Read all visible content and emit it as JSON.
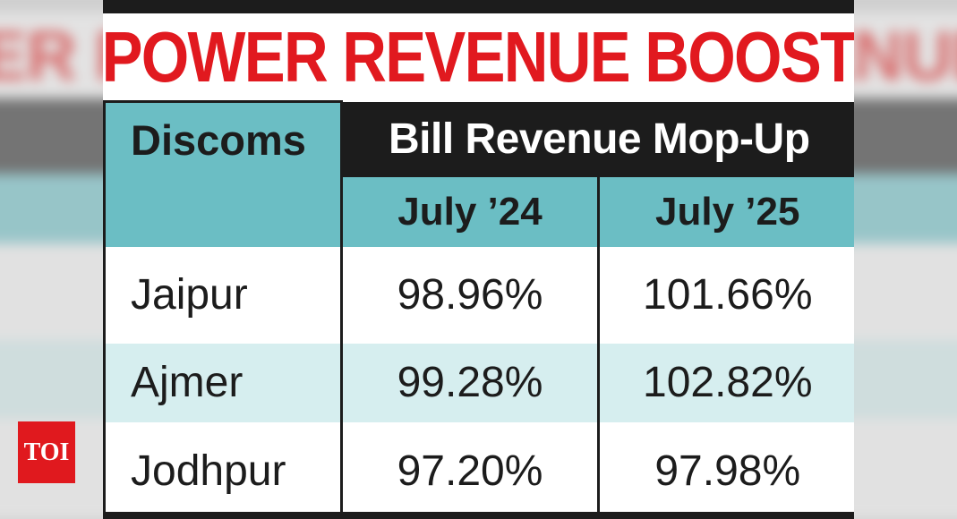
{
  "title": "POWER REVENUE BOOST",
  "table": {
    "row_header": "Discoms",
    "group_header": "Bill Revenue Mop-Up",
    "columns": [
      "July ’24",
      "July ’25"
    ],
    "rows": [
      {
        "name": "Jaipur",
        "values": [
          "98.96%",
          "101.66%"
        ]
      },
      {
        "name": "Ajmer",
        "values": [
          "99.28%",
          "102.82%"
        ]
      },
      {
        "name": "Jodhpur",
        "values": [
          "97.20%",
          "97.98%"
        ]
      }
    ]
  },
  "logo": {
    "text": "TOI"
  },
  "colors": {
    "title_red": "#e1191f",
    "header_dark": "#1c1c1c",
    "teal": "#6bbec4",
    "light_teal_row": "#d6eeef",
    "logo_red": "#e0191e"
  }
}
